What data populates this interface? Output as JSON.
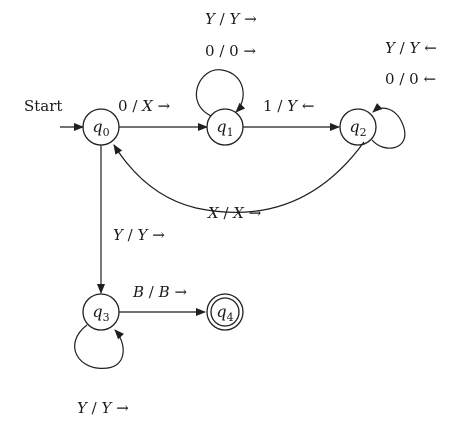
{
  "diagram": {
    "type": "state-diagram",
    "start_label": "Start",
    "states": [
      {
        "id": "q0",
        "name": "q",
        "sub": "0",
        "accepting": false
      },
      {
        "id": "q1",
        "name": "q",
        "sub": "1",
        "accepting": false
      },
      {
        "id": "q2",
        "name": "q",
        "sub": "2",
        "accepting": false
      },
      {
        "id": "q3",
        "name": "q",
        "sub": "3",
        "accepting": false
      },
      {
        "id": "q4",
        "name": "q",
        "sub": "4",
        "accepting": true
      }
    ],
    "transitions": [
      {
        "from": "q0",
        "to": "q1",
        "read": "0",
        "write": "X",
        "move": "→"
      },
      {
        "from": "q1",
        "to": "q1",
        "read": "Y",
        "write": "Y",
        "move": "→"
      },
      {
        "from": "q1",
        "to": "q1",
        "read": "0",
        "write": "0",
        "move": "→"
      },
      {
        "from": "q1",
        "to": "q2",
        "read": "1",
        "write": "Y",
        "move": "←"
      },
      {
        "from": "q2",
        "to": "q2",
        "read": "Y",
        "write": "Y",
        "move": "←"
      },
      {
        "from": "q2",
        "to": "q2",
        "read": "0",
        "write": "0",
        "move": "←"
      },
      {
        "from": "q2",
        "to": "q0",
        "read": "X",
        "write": "X",
        "move": "→"
      },
      {
        "from": "q0",
        "to": "q3",
        "read": "Y",
        "write": "Y",
        "move": "→"
      },
      {
        "from": "q3",
        "to": "q3",
        "read": "Y",
        "write": "Y",
        "move": "→"
      },
      {
        "from": "q3",
        "to": "q4",
        "read": "B",
        "write": "B",
        "move": "→"
      }
    ]
  }
}
